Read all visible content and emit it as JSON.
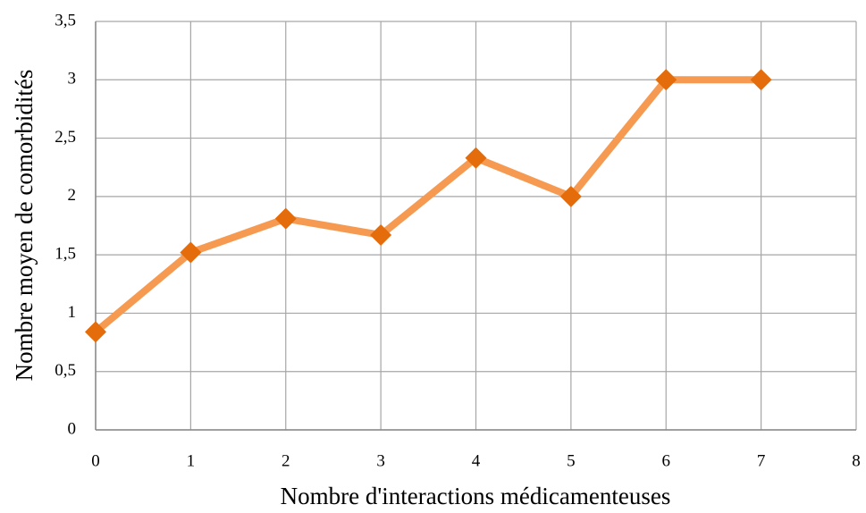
{
  "chart_data": {
    "type": "line",
    "x_label": "Nombre d'interactions  médicamenteuses",
    "y_label": "Nombre moyen  de comorbidités",
    "x": [
      0,
      1,
      2,
      3,
      4,
      5,
      6,
      7
    ],
    "series": [
      {
        "color": "#f59a50",
        "marker_color": "#e46c0a",
        "values": [
          0.84,
          1.52,
          1.81,
          1.67,
          2.33,
          2.0,
          3.0,
          3.0
        ]
      }
    ],
    "xlim": [
      0,
      8
    ],
    "xticks": [
      0,
      1,
      2,
      3,
      4,
      5,
      6,
      7,
      8
    ],
    "ylim": [
      0,
      3.5
    ],
    "yticks": [
      0,
      {
        "value": 0.5,
        "label": "0,5"
      },
      1,
      {
        "value": 1.5,
        "label": "1,5"
      },
      2,
      {
        "value": 2.5,
        "label": "2,5"
      },
      3,
      {
        "value": 3.5,
        "label": "3,5"
      }
    ],
    "grid": true
  }
}
